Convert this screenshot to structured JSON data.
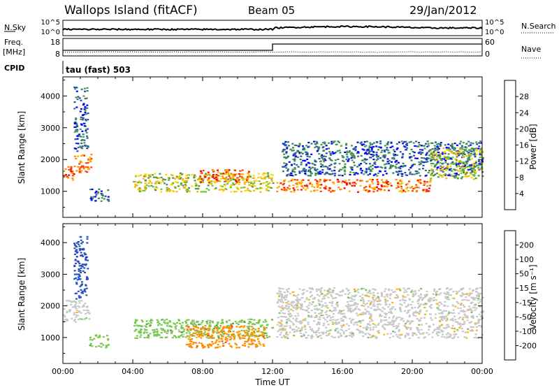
{
  "header": {
    "station": "Wallops Island (fitACF)",
    "beam": "Beam 05",
    "date": "29/Jan/2012"
  },
  "top_panels": {
    "nsky_label": "N.Sky",
    "nsky_ticks": [
      "10^5",
      "10^0"
    ],
    "nsearch_label": "N.Search",
    "nsearch_ticks": [
      "10^5",
      "10^0"
    ],
    "freq_label": "Freq.",
    "freq_unit": "[MHz]",
    "freq_ticks": [
      "18",
      "8"
    ],
    "nave_label": "Nave",
    "nave_ticks": [
      "60",
      "0"
    ],
    "cpid_label": "CPID",
    "cpid_value": "tau (fast) 503"
  },
  "colors": {
    "power": [
      "#0000ff",
      "#2a4fa8",
      "#2e7d6e",
      "#4a9a4a",
      "#64c83c",
      "#ffd700",
      "#ffb400",
      "#ff8c00",
      "#ff4000",
      "#ff0000"
    ],
    "velocity": [
      "#1e2ab4",
      "#2850c8",
      "#287850",
      "#50a03c",
      "#78c850",
      "#c8c8c8",
      "#ffb400",
      "#ff8c00",
      "#ff5000",
      "#ff0000"
    ]
  },
  "chart_data": [
    {
      "type": "heatmap",
      "panel": "power",
      "ylabel": "Slant Range [km]",
      "yticks": [
        "4000",
        "3000",
        "2000",
        "1000"
      ],
      "ylim": [
        180,
        4600
      ],
      "xlim": [
        0,
        24
      ],
      "colorbar_label": "Power [dB]",
      "colorbar_ticks": [
        "28",
        "24",
        "20",
        "16",
        "12",
        "8",
        "4"
      ],
      "regions": [
        {
          "x": [
            0.0,
            0.6
          ],
          "y": [
            1300,
            1800
          ],
          "level": "strong"
        },
        {
          "x": [
            0.6,
            1.6
          ],
          "y": [
            1600,
            2200
          ],
          "level": "strong"
        },
        {
          "x": [
            0.6,
            1.4
          ],
          "y": [
            2200,
            4300
          ],
          "level": "weak"
        },
        {
          "x": [
            1.5,
            2.6
          ],
          "y": [
            700,
            1100
          ],
          "level": "weak"
        },
        {
          "x": [
            4.0,
            12.0
          ],
          "y": [
            1000,
            1600
          ],
          "level": "medium"
        },
        {
          "x": [
            7.8,
            10.6
          ],
          "y": [
            1300,
            1700
          ],
          "level": "strong"
        },
        {
          "x": [
            12.2,
            21.0
          ],
          "y": [
            1000,
            1400
          ],
          "level": "strong"
        },
        {
          "x": [
            12.5,
            24.0
          ],
          "y": [
            1500,
            2600
          ],
          "level": "weak"
        },
        {
          "x": [
            21.0,
            24.0
          ],
          "y": [
            1400,
            2400
          ],
          "level": "medium"
        }
      ]
    },
    {
      "type": "heatmap",
      "panel": "velocity",
      "ylabel": "Slant Range [km]",
      "yticks": [
        "4000",
        "3000",
        "2000",
        "1000"
      ],
      "ylim": [
        180,
        4600
      ],
      "xlim": [
        0,
        24
      ],
      "xlabel": "Time UT",
      "xticks": [
        "00:00",
        "04:00",
        "08:00",
        "12:00",
        "16:00",
        "20:00",
        "00:00"
      ],
      "colorbar_label": "Velocity [m s⁻¹]",
      "colorbar_ticks": [
        "200",
        "100",
        "50",
        "15",
        "-15",
        "-50",
        "-100",
        "-200"
      ],
      "regions": [
        {
          "x": [
            0.0,
            1.5
          ],
          "y": [
            1500,
            2200
          ],
          "velocity": 0
        },
        {
          "x": [
            0.6,
            1.4
          ],
          "y": [
            2200,
            4300
          ],
          "velocity": 150
        },
        {
          "x": [
            1.5,
            2.6
          ],
          "y": [
            700,
            1100
          ],
          "velocity": 30
        },
        {
          "x": [
            4.0,
            12.0
          ],
          "y": [
            1000,
            1600
          ],
          "velocity": 30
        },
        {
          "x": [
            7.0,
            11.5
          ],
          "y": [
            700,
            1400
          ],
          "velocity": -60
        },
        {
          "x": [
            12.2,
            24.0
          ],
          "y": [
            1000,
            2600
          ],
          "velocity": 0
        }
      ]
    }
  ]
}
